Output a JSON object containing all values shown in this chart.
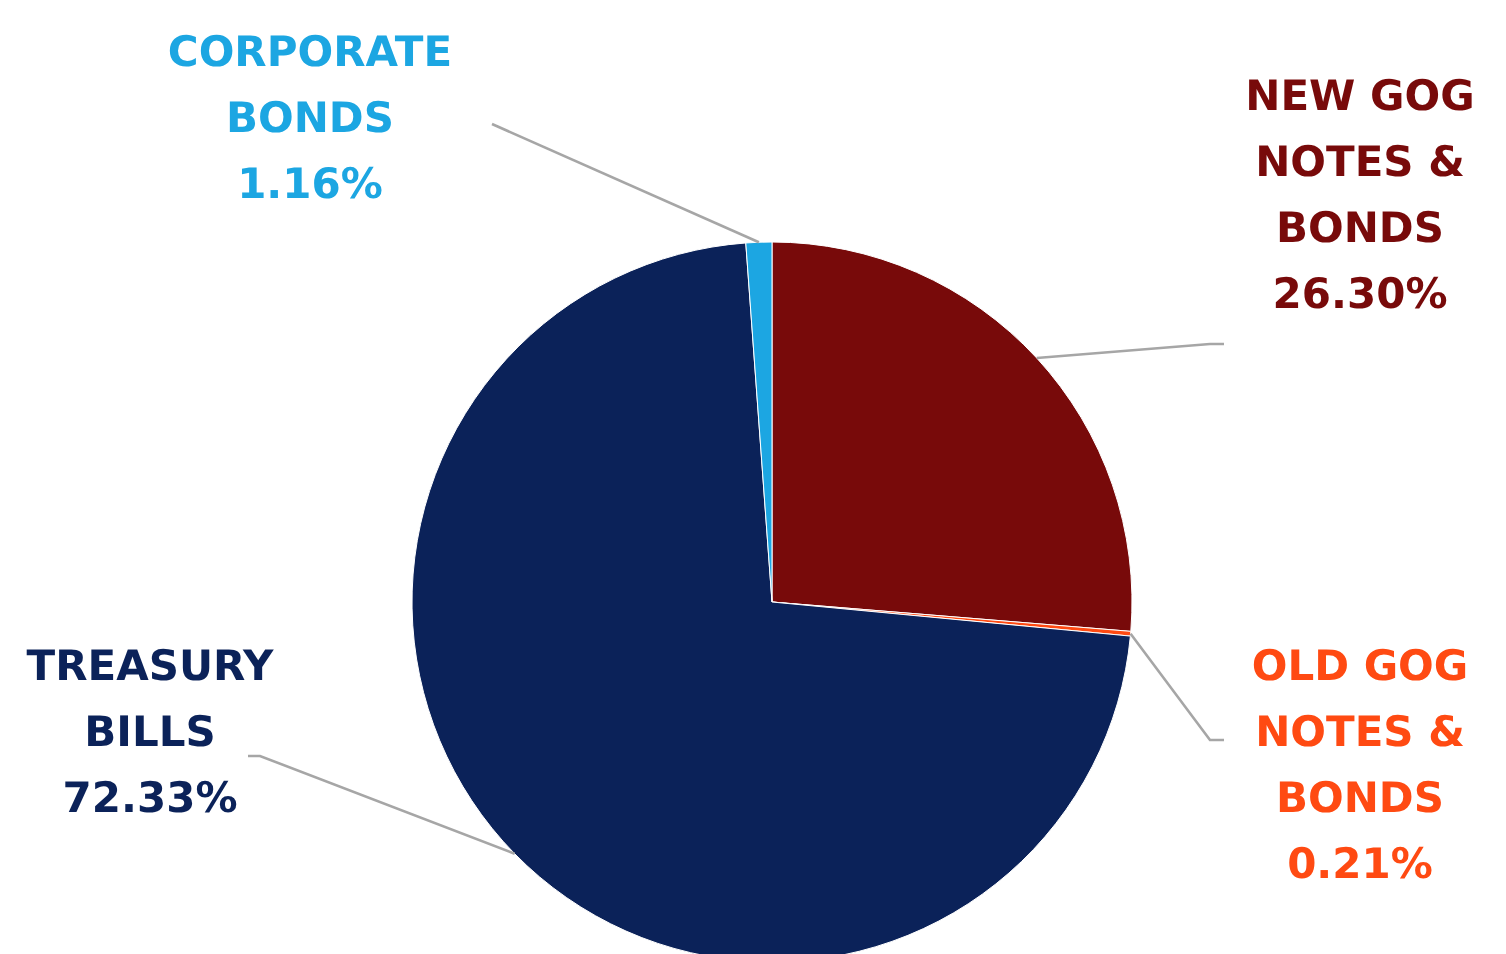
{
  "chart_data": {
    "type": "pie",
    "categories": [
      "NEW GOG NOTES & BONDS",
      "OLD GOG NOTES & BONDS",
      "TREASURY BILLS",
      "CORPORATE BONDS"
    ],
    "values": [
      26.3,
      0.21,
      72.33,
      1.16
    ],
    "colors": [
      "#780a0a",
      "#ff4a12",
      "#0b2259",
      "#1ca6e2"
    ],
    "value_labels": [
      "26.30%",
      "0.21%",
      "72.33%",
      "1.16%"
    ]
  }
}
